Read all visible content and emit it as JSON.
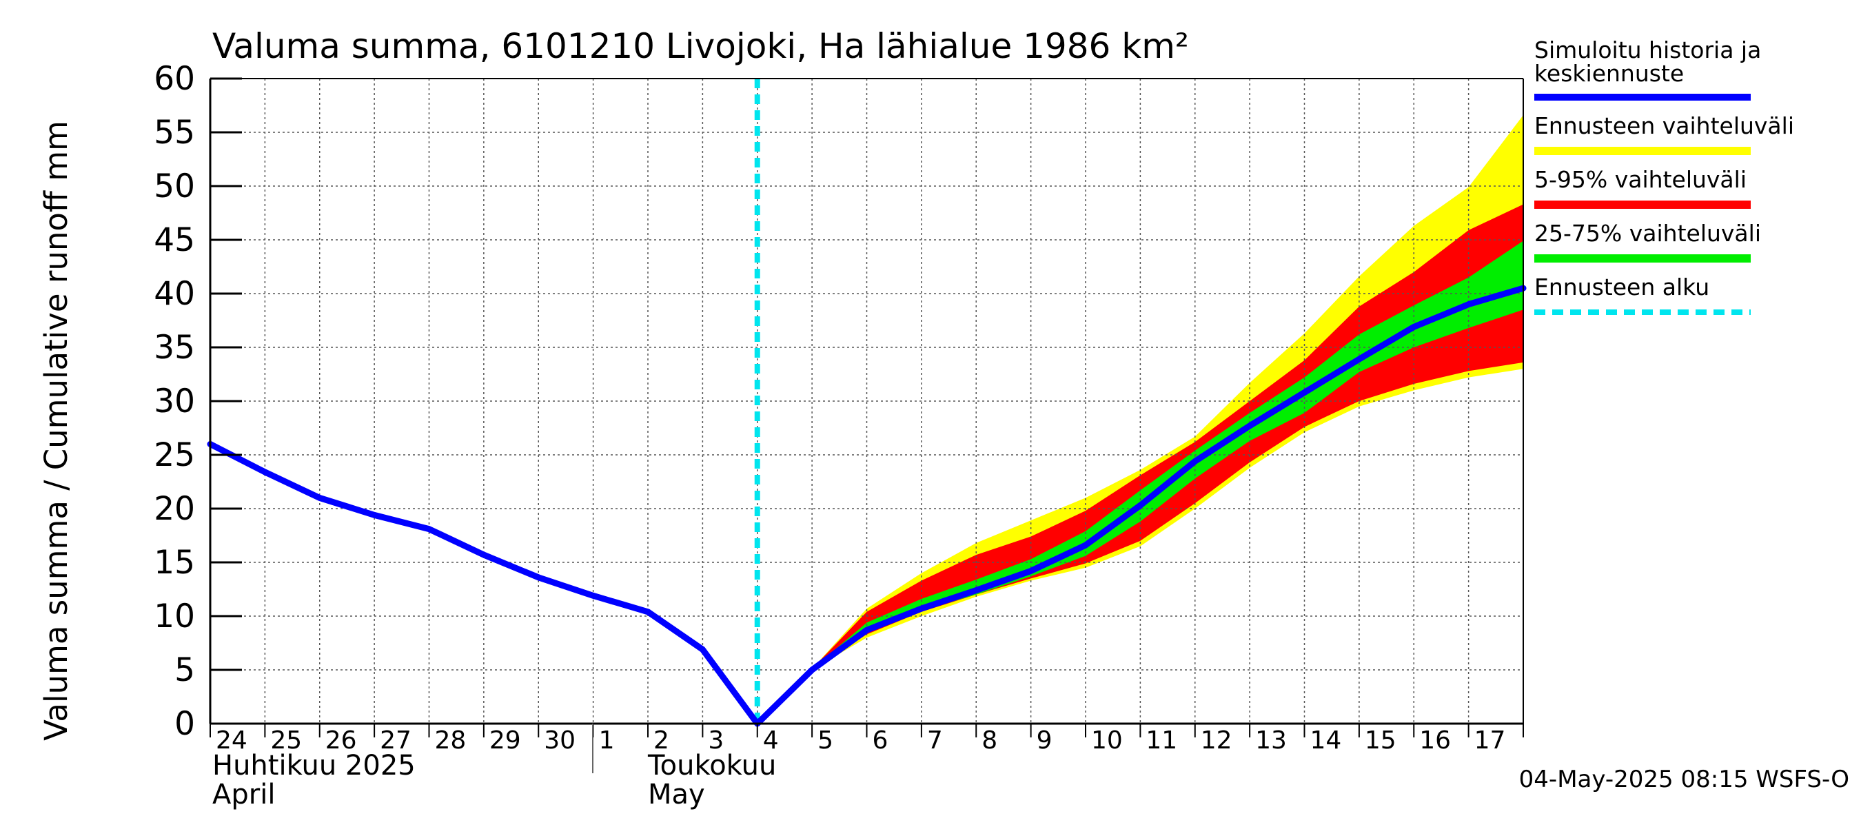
{
  "chart_data": {
    "type": "area",
    "title": "Valuma summa, 6101210 Livojoki, Ha lähialue 1986 km²",
    "ylabel": "Valuma summa / Cumulative runoff    mm",
    "ylim": [
      0,
      60
    ],
    "yticks": [
      0,
      5,
      10,
      15,
      20,
      25,
      30,
      35,
      40,
      45,
      50,
      55,
      60
    ],
    "xlim": [
      0,
      24
    ],
    "x_tick_labels": [
      "24",
      "25",
      "26",
      "27",
      "28",
      "29",
      "30",
      "1",
      "2",
      "3",
      "4",
      "5",
      "6",
      "7",
      "8",
      "9",
      "10",
      "11",
      "12",
      "13",
      "14",
      "15",
      "16",
      "17"
    ],
    "month_labels": [
      {
        "line1": "Huhtikuu  2025",
        "line2": "April"
      },
      {
        "line1": "Toukokuu",
        "line2": "May"
      }
    ],
    "forecast_start_x": 10.0,
    "footer": "04-May-2025 08:15 WSFS-O",
    "legend": [
      {
        "label": "Simuloitu historia ja keskiennuste",
        "color": "#0000ff",
        "style": "solid"
      },
      {
        "label": "Ennusteen vaihteluväli",
        "color": "#ffff00",
        "style": "solid"
      },
      {
        "label": "5-95% vaihteluväli",
        "color": "#ff0000",
        "style": "solid"
      },
      {
        "label": "25-75% vaihteluväli",
        "color": "#00ee00",
        "style": "solid"
      },
      {
        "label": "Ennusteen alku",
        "color": "#00e5ee",
        "style": "dashed"
      }
    ],
    "series": [
      {
        "name": "Simuloitu historia ja keskiennuste",
        "color": "#0000ff",
        "x": [
          0,
          1,
          2,
          3,
          4,
          5,
          6,
          7,
          8,
          9,
          10,
          11,
          12,
          13,
          14,
          15,
          16,
          17,
          18,
          19,
          20,
          21,
          22,
          23,
          24
        ],
        "values": [
          26.0,
          23.4,
          21.0,
          19.4,
          18.1,
          15.7,
          13.6,
          11.9,
          10.4,
          6.9,
          0.0,
          5.0,
          8.7,
          10.7,
          12.4,
          14.2,
          16.6,
          20.3,
          24.4,
          27.7,
          30.8,
          33.9,
          36.9,
          39.0,
          40.5
        ]
      },
      {
        "name": "Ennusteen vaihteluväli",
        "color": "#ffff00",
        "x": [
          11,
          12,
          13,
          14,
          15,
          16,
          17,
          18,
          19,
          20,
          21,
          22,
          23,
          24
        ],
        "upper": [
          5.1,
          10.7,
          14.0,
          16.8,
          18.9,
          21.0,
          23.6,
          26.7,
          31.7,
          36.3,
          41.6,
          46.3,
          49.9,
          56.6
        ],
        "lower": [
          5.0,
          8.0,
          10.0,
          11.8,
          13.3,
          14.5,
          16.5,
          20.0,
          23.8,
          27.1,
          29.5,
          31.0,
          32.2,
          33.0
        ]
      },
      {
        "name": "5-95% vaihteluväli",
        "color": "#ff0000",
        "x": [
          11,
          12,
          13,
          14,
          15,
          16,
          17,
          18,
          19,
          20,
          21,
          22,
          23,
          24
        ],
        "upper": [
          5.1,
          10.4,
          13.3,
          15.7,
          17.4,
          19.8,
          23.1,
          26.2,
          30.0,
          33.8,
          38.8,
          42.0,
          45.9,
          48.3
        ],
        "lower": [
          5.0,
          8.3,
          10.4,
          12.0,
          13.5,
          14.9,
          17.0,
          20.5,
          24.3,
          27.6,
          30.0,
          31.6,
          32.8,
          33.6
        ]
      },
      {
        "name": "25-75% vaihteluväli",
        "color": "#00ee00",
        "x": [
          11,
          12,
          13,
          14,
          15,
          16,
          17,
          18,
          19,
          20,
          21,
          22,
          23,
          24
        ],
        "upper": [
          5.1,
          9.4,
          11.6,
          13.4,
          15.3,
          17.9,
          21.7,
          25.4,
          28.9,
          32.2,
          36.2,
          38.9,
          41.5,
          44.9
        ],
        "lower": [
          5.0,
          8.4,
          10.5,
          12.0,
          13.7,
          15.6,
          18.8,
          22.8,
          26.3,
          28.9,
          32.7,
          35.0,
          36.8,
          38.5
        ]
      }
    ]
  }
}
